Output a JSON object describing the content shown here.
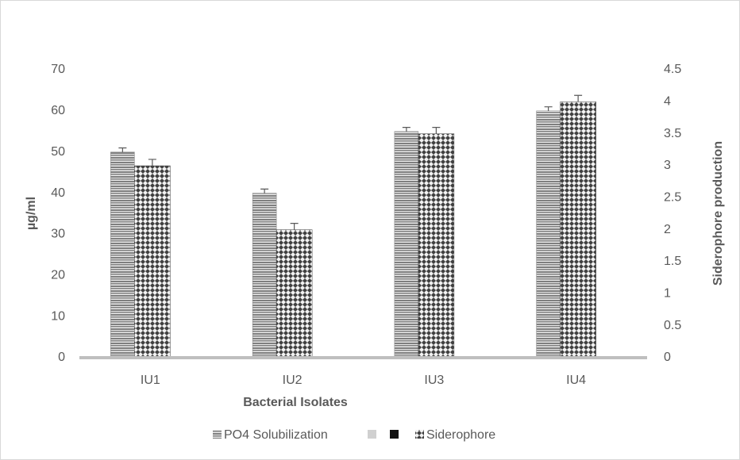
{
  "chart_data": {
    "type": "bar",
    "categories": [
      "IU1",
      "IU2",
      "IU3",
      "IU4"
    ],
    "xlabel": "Bacterial Isolates",
    "ylabel": "µg/ml",
    "y2label": "Siderophore production",
    "ylim": [
      0,
      70
    ],
    "yticks": [
      0,
      10,
      20,
      30,
      40,
      50,
      60,
      70
    ],
    "y2lim": [
      0,
      4.5
    ],
    "y2ticks": [
      0,
      0.5,
      1,
      1.5,
      2,
      2.5,
      3,
      3.5,
      4,
      4.5
    ],
    "series": [
      {
        "name": "PO4 Solubilization",
        "color": "#7f7f7f",
        "pattern": "horizontal-stripes",
        "values": [
          50,
          40,
          55,
          60
        ],
        "errors": [
          1,
          1,
          1,
          1
        ]
      },
      {
        "name": "Siderophore",
        "color": "#404040",
        "pattern": "crosshatch",
        "axis": "y2",
        "values": [
          3.0,
          2.0,
          3.5,
          4.0
        ],
        "errors": [
          0.1,
          0.1,
          0.1,
          0.1
        ]
      }
    ],
    "grid": false
  }
}
